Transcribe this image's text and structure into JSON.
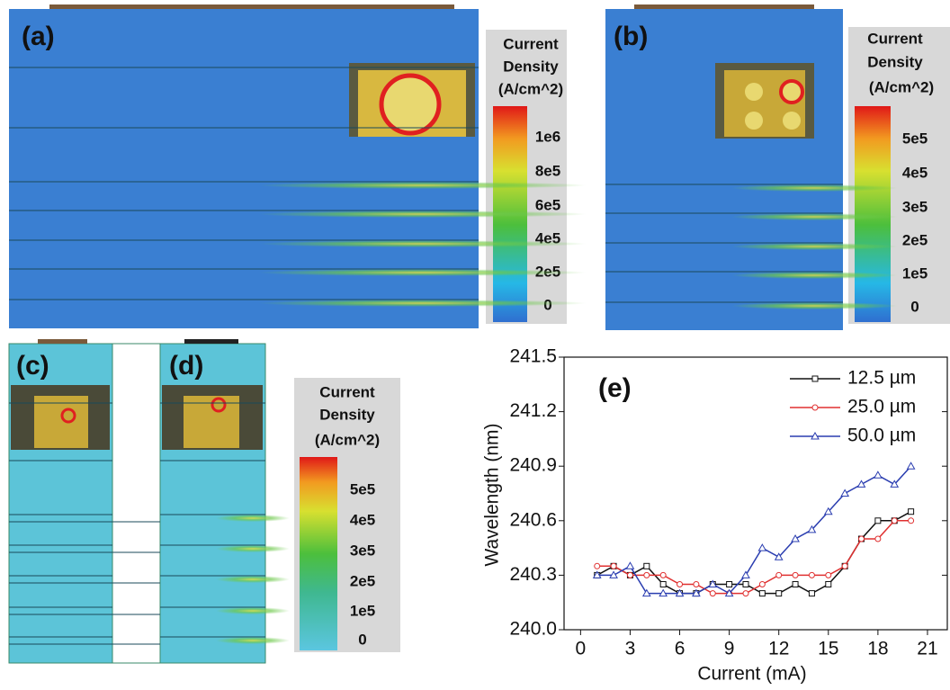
{
  "panels": [
    {
      "label": "(a)",
      "colorbar": {
        "title": [
          "Current",
          "Density",
          "(A/cm^2)"
        ],
        "ticks": [
          "1e6",
          "8e5",
          "6e5",
          "4e5",
          "2e5",
          "0"
        ]
      }
    },
    {
      "label": "(b)",
      "colorbar": {
        "title": [
          "Current",
          "Density",
          "(A/cm^2)"
        ],
        "ticks": [
          "5e5",
          "4e5",
          "3e5",
          "2e5",
          "1e5",
          "0"
        ]
      }
    },
    {
      "label": "(c)"
    },
    {
      "label": "(d)",
      "colorbar": {
        "title": [
          "Current",
          "Density",
          "(A/cm^2)"
        ],
        "ticks": [
          "5e5",
          "4e5",
          "3e5",
          "2e5",
          "1e5",
          "0"
        ]
      }
    }
  ],
  "chart_data": {
    "type": "line",
    "label": "(e)",
    "x_label": "Current (mA)",
    "y_label": "Wavelength (nm)",
    "xlim": [
      -1,
      22.2
    ],
    "ylim": [
      240.0,
      241.5
    ],
    "xticks": [
      0,
      3,
      6,
      9,
      12,
      15,
      18,
      21
    ],
    "yticks": [
      {
        "value": 240.0,
        "label": "240.0"
      },
      240.3,
      240.6,
      240.9,
      241.2,
      241.5
    ],
    "legend": "upper right",
    "x": [
      1,
      2,
      3,
      4,
      5,
      6,
      7,
      8,
      9,
      10,
      11,
      12,
      13,
      14,
      15,
      16,
      17,
      18,
      19,
      20
    ],
    "series": [
      {
        "name": "12.5 µm",
        "color": "#111111",
        "marker": "square",
        "values": [
          240.3,
          240.35,
          240.3,
          240.35,
          240.25,
          240.2,
          240.2,
          240.25,
          240.25,
          240.25,
          240.2,
          240.2,
          240.25,
          240.2,
          240.25,
          240.35,
          240.5,
          240.6,
          240.6,
          240.65
        ]
      },
      {
        "name": "25.0 µm",
        "color": "#e03030",
        "marker": "circle",
        "values": [
          240.35,
          240.35,
          240.3,
          240.3,
          240.3,
          240.25,
          240.25,
          240.2,
          240.2,
          240.2,
          240.25,
          240.3,
          240.3,
          240.3,
          240.3,
          240.35,
          240.5,
          240.5,
          240.6,
          240.6
        ]
      },
      {
        "name": "50.0 µm",
        "color": "#2a3db0",
        "marker": "triangle",
        "values": [
          240.3,
          240.3,
          240.35,
          240.2,
          240.2,
          240.2,
          240.2,
          240.25,
          240.2,
          240.3,
          240.45,
          240.4,
          240.5,
          240.55,
          240.65,
          240.75,
          240.8,
          240.85,
          240.8,
          240.9
        ]
      }
    ]
  }
}
